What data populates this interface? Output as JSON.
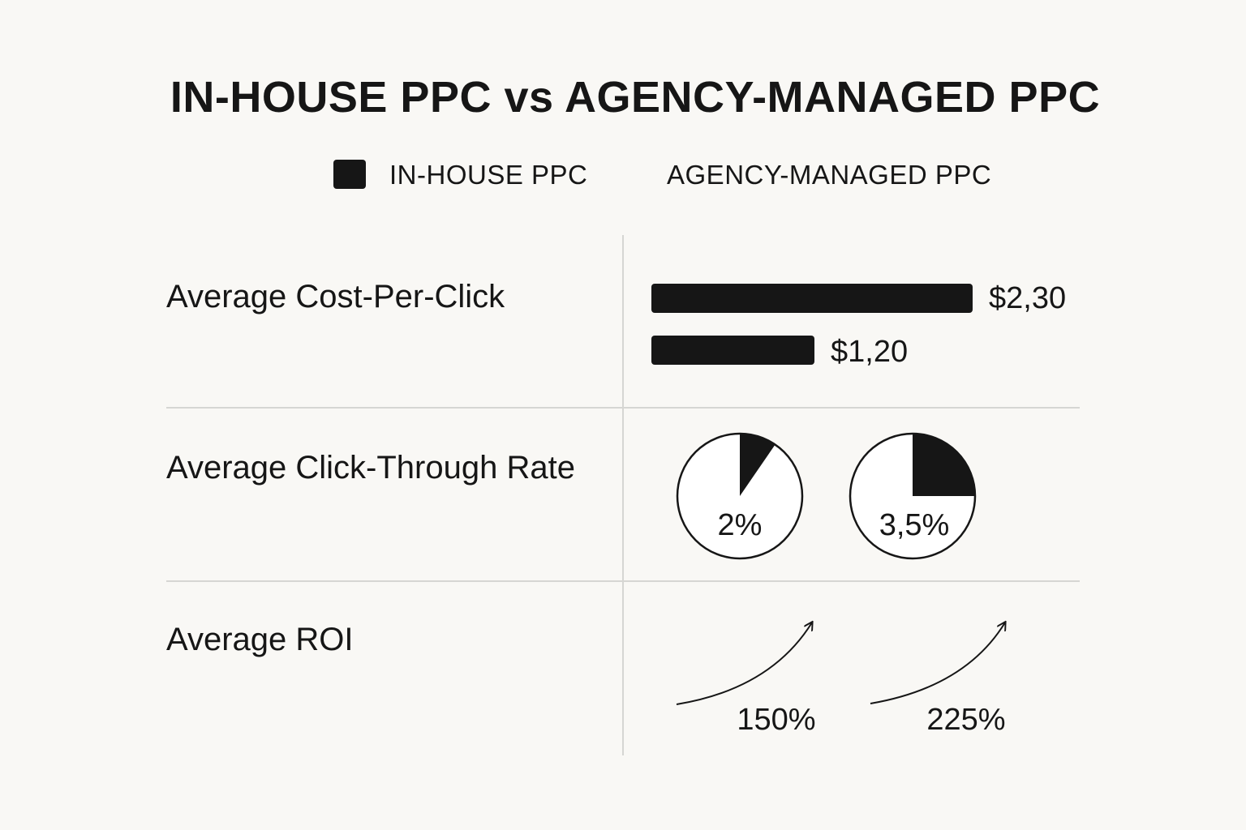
{
  "title": "IN-HOUSE PPC vs AGENCY-MANAGED PPC",
  "legend": {
    "in_house": "IN-HOUSE PPC",
    "agency": "AGENCY-MANAGED PPC"
  },
  "colors": {
    "background": "#f9f8f5",
    "ink": "#161616",
    "divider": "#d6d6d3"
  },
  "chart_data": [
    {
      "type": "bar",
      "title": "Average Cost-Per-Click",
      "orientation": "horizontal",
      "series": [
        {
          "name": "IN-HOUSE PPC",
          "value": 2.3,
          "label": "$2,30"
        },
        {
          "name": "AGENCY-MANAGED PPC",
          "value": 1.2,
          "label": "$1,20"
        }
      ],
      "xlim": [
        0,
        2.3
      ]
    },
    {
      "type": "pie",
      "title": "Average Click-Through Rate",
      "series": [
        {
          "name": "IN-HOUSE PPC",
          "value": 2,
          "label": "2%"
        },
        {
          "name": "AGENCY-MANAGED PPC",
          "value": 3.5,
          "label": "3,5%"
        }
      ]
    },
    {
      "type": "line",
      "title": "Average ROI",
      "series": [
        {
          "name": "IN-HOUSE PPC",
          "value": 150,
          "label": "150%"
        },
        {
          "name": "AGENCY-MANAGED PPC",
          "value": 225,
          "label": "225%"
        }
      ]
    }
  ]
}
